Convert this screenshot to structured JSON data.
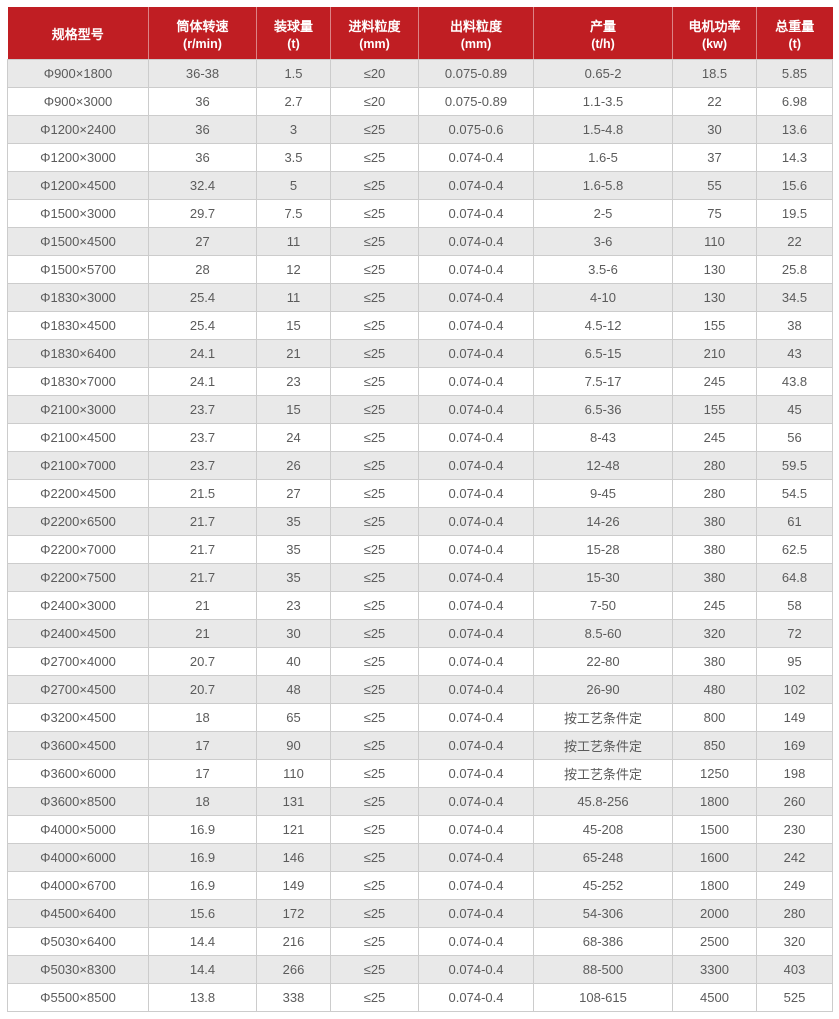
{
  "colors": {
    "header_bg": "#c01e23",
    "header_text": "#ffffff",
    "row_odd_bg": "#e9e9e9",
    "row_even_bg": "#ffffff",
    "cell_text": "#5b5b5b",
    "border": "#cccccc"
  },
  "chart_data": {
    "type": "table",
    "columns": [
      {
        "label": "规格型号",
        "unit": ""
      },
      {
        "label": "筒体转速",
        "unit": "(r/min)"
      },
      {
        "label": "装球量",
        "unit": "(t)"
      },
      {
        "label": "进料粒度",
        "unit": "(mm)"
      },
      {
        "label": "出料粒度",
        "unit": "(mm)"
      },
      {
        "label": "产量",
        "unit": "(t/h)"
      },
      {
        "label": "电机功率",
        "unit": "(kw)"
      },
      {
        "label": "总重量",
        "unit": "(t)"
      }
    ],
    "rows": [
      [
        "Φ900×1800",
        "36-38",
        "1.5",
        "≤20",
        "0.075-0.89",
        "0.65-2",
        "18.5",
        "5.85"
      ],
      [
        "Φ900×3000",
        "36",
        "2.7",
        "≤20",
        "0.075-0.89",
        "1.1-3.5",
        "22",
        "6.98"
      ],
      [
        "Φ1200×2400",
        "36",
        "3",
        "≤25",
        "0.075-0.6",
        "1.5-4.8",
        "30",
        "13.6"
      ],
      [
        "Φ1200×3000",
        "36",
        "3.5",
        "≤25",
        "0.074-0.4",
        "1.6-5",
        "37",
        "14.3"
      ],
      [
        "Φ1200×4500",
        "32.4",
        "5",
        "≤25",
        "0.074-0.4",
        "1.6-5.8",
        "55",
        "15.6"
      ],
      [
        "Φ1500×3000",
        "29.7",
        "7.5",
        "≤25",
        "0.074-0.4",
        "2-5",
        "75",
        "19.5"
      ],
      [
        "Φ1500×4500",
        "27",
        "11",
        "≤25",
        "0.074-0.4",
        "3-6",
        "110",
        "22"
      ],
      [
        "Φ1500×5700",
        "28",
        "12",
        "≤25",
        "0.074-0.4",
        "3.5-6",
        "130",
        "25.8"
      ],
      [
        "Φ1830×3000",
        "25.4",
        "11",
        "≤25",
        "0.074-0.4",
        "4-10",
        "130",
        "34.5"
      ],
      [
        "Φ1830×4500",
        "25.4",
        "15",
        "≤25",
        "0.074-0.4",
        "4.5-12",
        "155",
        "38"
      ],
      [
        "Φ1830×6400",
        "24.1",
        "21",
        "≤25",
        "0.074-0.4",
        "6.5-15",
        "210",
        "43"
      ],
      [
        "Φ1830×7000",
        "24.1",
        "23",
        "≤25",
        "0.074-0.4",
        "7.5-17",
        "245",
        "43.8"
      ],
      [
        "Φ2100×3000",
        "23.7",
        "15",
        "≤25",
        "0.074-0.4",
        "6.5-36",
        "155",
        "45"
      ],
      [
        "Φ2100×4500",
        "23.7",
        "24",
        "≤25",
        "0.074-0.4",
        "8-43",
        "245",
        "56"
      ],
      [
        "Φ2100×7000",
        "23.7",
        "26",
        "≤25",
        "0.074-0.4",
        "12-48",
        "280",
        "59.5"
      ],
      [
        "Φ2200×4500",
        "21.5",
        "27",
        "≤25",
        "0.074-0.4",
        "9-45",
        "280",
        "54.5"
      ],
      [
        "Φ2200×6500",
        "21.7",
        "35",
        "≤25",
        "0.074-0.4",
        "14-26",
        "380",
        "61"
      ],
      [
        "Φ2200×7000",
        "21.7",
        "35",
        "≤25",
        "0.074-0.4",
        "15-28",
        "380",
        "62.5"
      ],
      [
        "Φ2200×7500",
        "21.7",
        "35",
        "≤25",
        "0.074-0.4",
        "15-30",
        "380",
        "64.8"
      ],
      [
        "Φ2400×3000",
        "21",
        "23",
        "≤25",
        "0.074-0.4",
        "7-50",
        "245",
        "58"
      ],
      [
        "Φ2400×4500",
        "21",
        "30",
        "≤25",
        "0.074-0.4",
        "8.5-60",
        "320",
        "72"
      ],
      [
        "Φ2700×4000",
        "20.7",
        "40",
        "≤25",
        "0.074-0.4",
        "22-80",
        "380",
        "95"
      ],
      [
        "Φ2700×4500",
        "20.7",
        "48",
        "≤25",
        "0.074-0.4",
        "26-90",
        "480",
        "102"
      ],
      [
        "Φ3200×4500",
        "18",
        "65",
        "≤25",
        "0.074-0.4",
        "按工艺条件定",
        "800",
        "149"
      ],
      [
        "Φ3600×4500",
        "17",
        "90",
        "≤25",
        "0.074-0.4",
        "按工艺条件定",
        "850",
        "169"
      ],
      [
        "Φ3600×6000",
        "17",
        "110",
        "≤25",
        "0.074-0.4",
        "按工艺条件定",
        "1250",
        "198"
      ],
      [
        "Φ3600×8500",
        "18",
        "131",
        "≤25",
        "0.074-0.4",
        "45.8-256",
        "1800",
        "260"
      ],
      [
        "Φ4000×5000",
        "16.9",
        "121",
        "≤25",
        "0.074-0.4",
        "45-208",
        "1500",
        "230"
      ],
      [
        "Φ4000×6000",
        "16.9",
        "146",
        "≤25",
        "0.074-0.4",
        "65-248",
        "1600",
        "242"
      ],
      [
        "Φ4000×6700",
        "16.9",
        "149",
        "≤25",
        "0.074-0.4",
        "45-252",
        "1800",
        "249"
      ],
      [
        "Φ4500×6400",
        "15.6",
        "172",
        "≤25",
        "0.074-0.4",
        "54-306",
        "2000",
        "280"
      ],
      [
        "Φ5030×6400",
        "14.4",
        "216",
        "≤25",
        "0.074-0.4",
        "68-386",
        "2500",
        "320"
      ],
      [
        "Φ5030×8300",
        "14.4",
        "266",
        "≤25",
        "0.074-0.4",
        "88-500",
        "3300",
        "403"
      ],
      [
        "Φ5500×8500",
        "13.8",
        "338",
        "≤25",
        "0.074-0.4",
        "108-615",
        "4500",
        "525"
      ]
    ]
  }
}
